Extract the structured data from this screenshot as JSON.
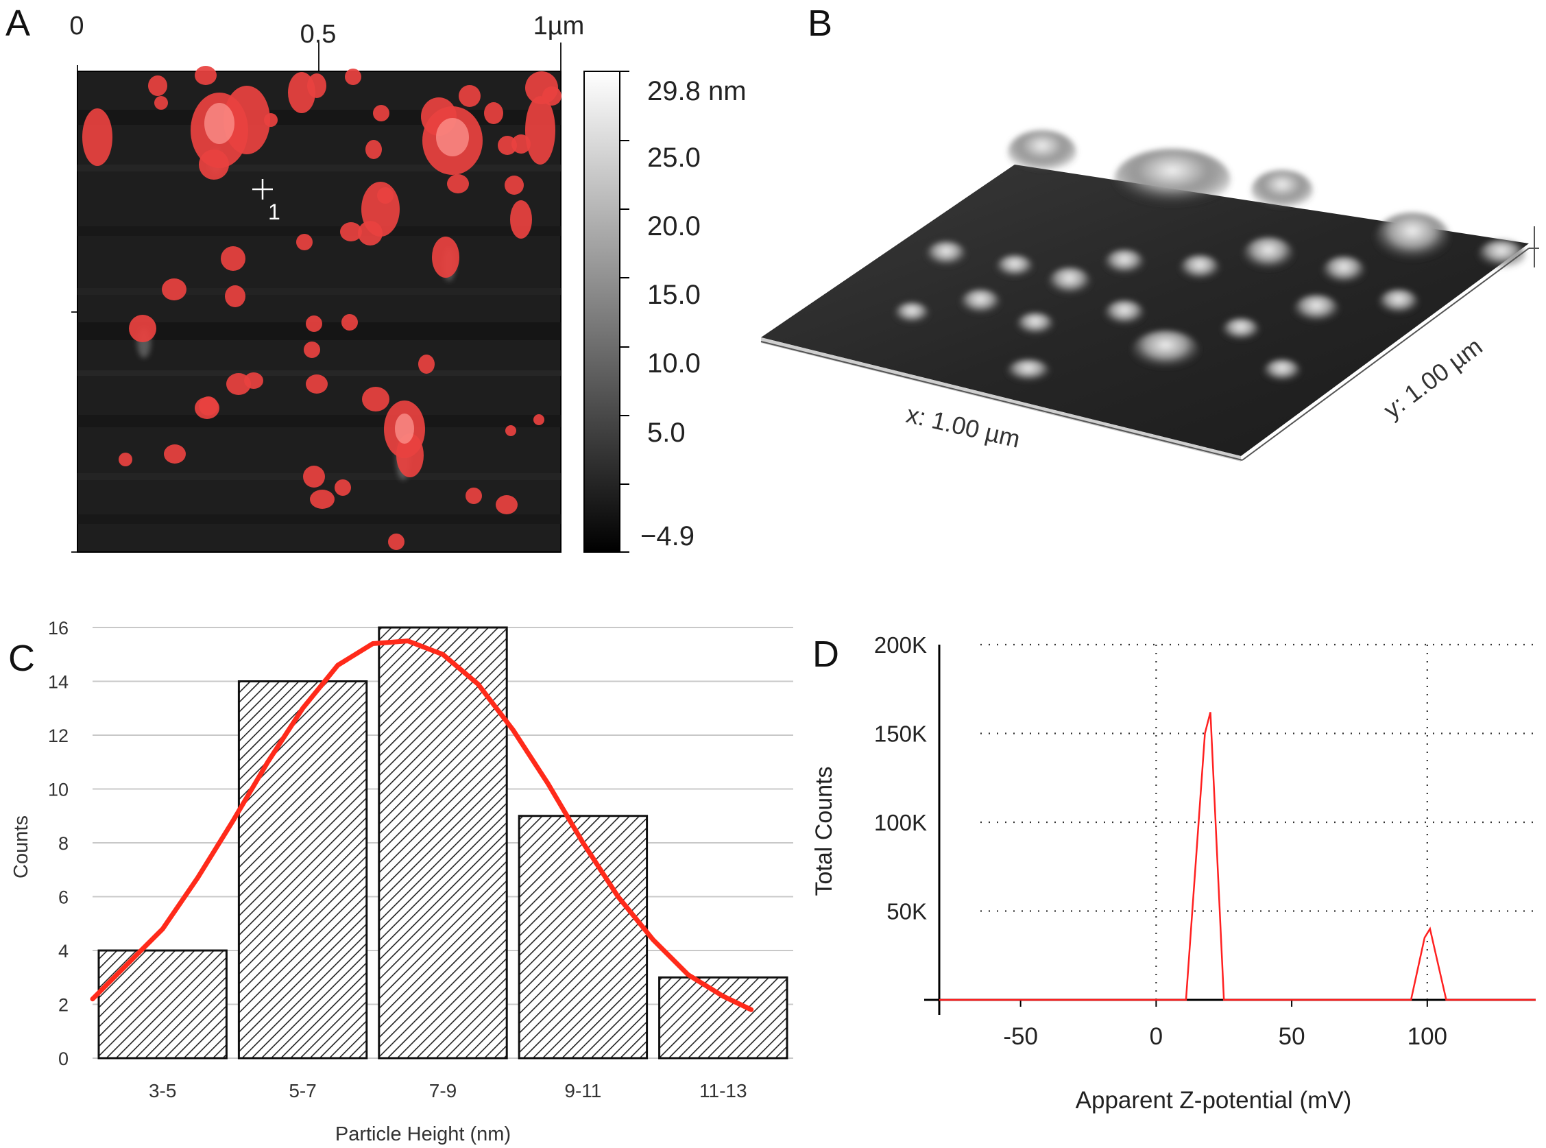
{
  "panels": {
    "a": {
      "label": "A"
    },
    "b": {
      "label": "B"
    },
    "c": {
      "label": "C"
    },
    "d": {
      "label": "D"
    }
  },
  "afm_image": {
    "x_ticks": [
      "0",
      "0.5",
      "1µm"
    ],
    "cursor_label": "1",
    "particle_color": "#e8423f"
  },
  "colorbar": {
    "labels": [
      "29.8 nm",
      "25.0",
      "20.0",
      "15.0",
      "10.0",
      "5.0",
      "−4.9"
    ]
  },
  "surface_3d": {
    "x_label": "x: 1.00 µm",
    "y_label": "y: 1.00 µm"
  },
  "chart_data": [
    {
      "type": "bar",
      "title": "",
      "xlabel": "Particle Height (nm)",
      "ylabel": "Counts",
      "categories": [
        "3-5",
        "5-7",
        "7-9",
        "9-11",
        "11-13"
      ],
      "values": [
        4,
        14,
        16,
        9,
        3
      ],
      "ylim": [
        0,
        16
      ],
      "yticks": [
        0,
        2,
        4,
        6,
        8,
        10,
        12,
        14,
        16
      ],
      "grid": true,
      "fit_curve_color": "#ff2a1a",
      "fit_curve": [
        [
          -0.5,
          2.2
        ],
        [
          -0.25,
          3.5
        ],
        [
          0,
          4.8
        ],
        [
          0.25,
          6.7
        ],
        [
          0.5,
          8.8
        ],
        [
          0.75,
          11.0
        ],
        [
          1.0,
          13.0
        ],
        [
          1.25,
          14.6
        ],
        [
          1.5,
          15.4
        ],
        [
          1.75,
          15.5
        ],
        [
          2.0,
          15.0
        ],
        [
          2.25,
          13.9
        ],
        [
          2.5,
          12.2
        ],
        [
          2.75,
          10.2
        ],
        [
          3.0,
          8.0
        ],
        [
          3.25,
          6.0
        ],
        [
          3.5,
          4.4
        ],
        [
          3.75,
          3.1
        ],
        [
          4.0,
          2.3
        ],
        [
          4.2,
          1.8
        ]
      ]
    },
    {
      "type": "line",
      "title": "",
      "xlabel": "Apparent Z-potential (mV)",
      "ylabel": "Total Counts",
      "xticks": [
        -50,
        0,
        50,
        100
      ],
      "xlim": [
        -80,
        140
      ],
      "ylim": [
        0,
        200000
      ],
      "ytick_values": [
        50000,
        100000,
        150000,
        200000
      ],
      "ytick_labels": [
        "50K",
        "100K",
        "150K",
        "200K"
      ],
      "grid": "dotted",
      "line_color": "#ff2020",
      "series": [
        {
          "name": "Total Counts",
          "x": [
            -80,
            11,
            18,
            20,
            25,
            94,
            99,
            101,
            107,
            140
          ],
          "y": [
            0,
            0,
            150000,
            162000,
            0,
            0,
            35000,
            40000,
            0,
            0
          ]
        }
      ]
    }
  ]
}
